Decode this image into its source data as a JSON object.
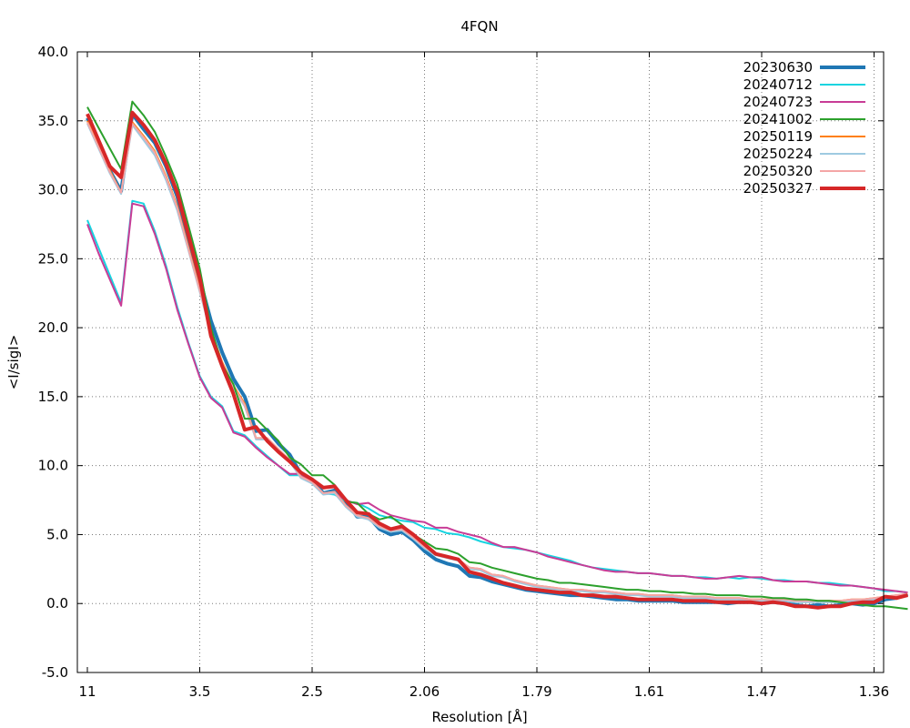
{
  "chart_data": {
    "type": "line",
    "title": "4FQN",
    "xlabel": "Resolution [Å]",
    "ylabel": "<I/sigI>",
    "ylim": [
      -5,
      40
    ],
    "y_ticks": [
      "-5.0",
      "0.0",
      "5.0",
      "10.0",
      "15.0",
      "20.0",
      "25.0",
      "30.0",
      "35.0",
      "40.0"
    ],
    "x_tick_labels": [
      "11",
      "3.5",
      "2.5",
      "2.06",
      "1.79",
      "1.61",
      "1.47",
      "1.36"
    ],
    "x_axis_note": "bins evenly spaced; labeled resolution shells at bins 0,10,20,30,40,50,60,70",
    "grid": true,
    "legend_position": "top-right",
    "series": [
      {
        "name": "20230630",
        "color": "#1f77b4",
        "width": 4,
        "values": [
          35.2,
          33.3,
          31.4,
          29.9,
          35.5,
          34.4,
          33.4,
          31.7,
          29.5,
          26.5,
          23.5,
          20.5,
          18.2,
          16.3,
          15.0,
          12.5,
          12.6,
          11.6,
          10.8,
          9.4,
          9.0,
          8.0,
          8.2,
          7.4,
          6.3,
          6.3,
          5.4,
          5.0,
          5.2,
          4.6,
          3.8,
          3.2,
          2.9,
          2.7,
          2.0,
          1.9,
          1.6,
          1.4,
          1.2,
          1.0,
          0.9,
          0.8,
          0.7,
          0.6,
          0.6,
          0.5,
          0.4,
          0.3,
          0.3,
          0.2,
          0.2,
          0.2,
          0.2,
          0.1,
          0.1,
          0.1,
          0.1,
          0.0,
          0.1,
          0.1,
          0.0,
          0.1,
          0.0,
          -0.1,
          -0.2,
          -0.1,
          -0.2,
          -0.1,
          0.0,
          -0.1,
          0.0,
          0.3,
          0.4,
          0.7
        ]
      },
      {
        "name": "20240712",
        "color": "#17d4e0",
        "width": 2,
        "values": [
          27.8,
          25.8,
          23.8,
          21.8,
          29.2,
          29.0,
          27.0,
          24.5,
          21.5,
          18.9,
          16.5,
          15.0,
          14.3,
          12.5,
          12.2,
          11.4,
          10.7,
          10.0,
          9.3,
          9.3,
          8.7,
          8.0,
          7.9,
          7.4,
          7.3,
          6.9,
          6.4,
          6.2,
          6.0,
          5.9,
          5.5,
          5.4,
          5.1,
          5.0,
          4.8,
          4.5,
          4.3,
          4.1,
          4.0,
          3.9,
          3.7,
          3.5,
          3.3,
          3.1,
          2.8,
          2.6,
          2.5,
          2.4,
          2.3,
          2.2,
          2.2,
          2.1,
          2.0,
          2.0,
          1.9,
          1.9,
          1.8,
          1.9,
          1.8,
          1.9,
          1.8,
          1.7,
          1.7,
          1.6,
          1.6,
          1.5,
          1.5,
          1.4,
          1.3,
          1.2,
          1.1,
          0.9,
          0.9,
          0.8
        ]
      },
      {
        "name": "20240723",
        "color": "#c83c96",
        "width": 2,
        "values": [
          27.5,
          25.4,
          23.5,
          21.6,
          29.0,
          28.8,
          26.8,
          24.3,
          21.3,
          18.8,
          16.4,
          14.9,
          14.2,
          12.4,
          12.1,
          11.3,
          10.6,
          10.0,
          9.4,
          9.4,
          8.8,
          8.0,
          8.0,
          7.5,
          7.2,
          7.3,
          6.8,
          6.4,
          6.2,
          6.0,
          5.9,
          5.5,
          5.5,
          5.2,
          5.0,
          4.8,
          4.4,
          4.1,
          4.1,
          3.9,
          3.7,
          3.4,
          3.2,
          3.0,
          2.8,
          2.6,
          2.4,
          2.3,
          2.3,
          2.2,
          2.2,
          2.1,
          2.0,
          2.0,
          1.9,
          1.8,
          1.8,
          1.9,
          2.0,
          1.9,
          1.9,
          1.7,
          1.6,
          1.6,
          1.6,
          1.5,
          1.4,
          1.3,
          1.3,
          1.2,
          1.1,
          1.0,
          0.9,
          0.8
        ]
      },
      {
        "name": "20241002",
        "color": "#2ca02c",
        "width": 2,
        "values": [
          36.0,
          34.5,
          33.0,
          31.5,
          36.4,
          35.4,
          34.2,
          32.4,
          30.4,
          27.4,
          24.3,
          20.0,
          17.3,
          15.9,
          13.4,
          13.4,
          12.6,
          11.8,
          10.6,
          10.1,
          9.3,
          9.3,
          8.6,
          7.4,
          7.3,
          6.5,
          6.1,
          6.3,
          5.7,
          5.0,
          4.5,
          4.0,
          3.9,
          3.6,
          3.0,
          2.9,
          2.6,
          2.4,
          2.2,
          2.0,
          1.8,
          1.7,
          1.5,
          1.5,
          1.4,
          1.3,
          1.2,
          1.1,
          1.0,
          1.0,
          0.9,
          0.9,
          0.8,
          0.8,
          0.7,
          0.7,
          0.6,
          0.6,
          0.6,
          0.5,
          0.5,
          0.4,
          0.4,
          0.3,
          0.3,
          0.2,
          0.2,
          0.1,
          0.0,
          -0.1,
          -0.2,
          -0.2,
          -0.3,
          -0.4
        ]
      },
      {
        "name": "20250119",
        "color": "#ff7f0e",
        "width": 2,
        "values": [
          35.0,
          33.2,
          31.4,
          29.8,
          34.9,
          33.9,
          32.8,
          31.0,
          28.8,
          25.8,
          22.8,
          19.8,
          17.5,
          15.8,
          14.5,
          12.0,
          12.0,
          11.2,
          10.4,
          9.2,
          8.8,
          8.0,
          8.1,
          7.1,
          6.4,
          6.2,
          5.6,
          5.3,
          5.4,
          4.8,
          4.1,
          3.6,
          3.4,
          3.2,
          2.6,
          2.5,
          2.1,
          2.0,
          1.7,
          1.5,
          1.3,
          1.2,
          1.1,
          1.0,
          1.0,
          0.9,
          0.9,
          0.8,
          0.7,
          0.7,
          0.6,
          0.6,
          0.6,
          0.5,
          0.5,
          0.5,
          0.4,
          0.4,
          0.4,
          0.3,
          0.3,
          0.3,
          0.3,
          0.2,
          0.2,
          0.2,
          0.2,
          0.2,
          0.3,
          0.3,
          0.4,
          0.5,
          0.6,
          0.7
        ]
      },
      {
        "name": "20250224",
        "color": "#9ecae1",
        "width": 2,
        "values": [
          34.8,
          33.0,
          31.2,
          29.7,
          34.7,
          33.6,
          32.5,
          30.7,
          28.5,
          25.6,
          22.6,
          19.6,
          17.3,
          15.6,
          14.3,
          11.9,
          11.9,
          11.1,
          10.3,
          9.1,
          8.7,
          7.9,
          8.0,
          7.0,
          6.3,
          6.1,
          5.5,
          5.2,
          5.3,
          4.7,
          4.0,
          3.5,
          3.3,
          3.1,
          2.5,
          2.4,
          2.0,
          1.9,
          1.6,
          1.4,
          1.2,
          1.1,
          1.0,
          0.9,
          0.9,
          0.8,
          0.8,
          0.7,
          0.6,
          0.6,
          0.5,
          0.5,
          0.5,
          0.4,
          0.4,
          0.4,
          0.3,
          0.3,
          0.3,
          0.2,
          0.2,
          0.2,
          0.2,
          0.1,
          0.1,
          0.1,
          0.1,
          0.1,
          0.2,
          0.2,
          0.3,
          0.4,
          0.5,
          0.6
        ]
      },
      {
        "name": "20250320",
        "color": "#f4a6a6",
        "width": 2,
        "values": [
          34.9,
          33.1,
          31.3,
          29.8,
          34.8,
          33.8,
          32.7,
          30.9,
          28.7,
          25.7,
          22.7,
          19.7,
          17.4,
          15.7,
          14.4,
          12.0,
          12.0,
          11.2,
          10.4,
          9.2,
          8.8,
          8.0,
          8.1,
          7.1,
          6.4,
          6.2,
          5.6,
          5.3,
          5.4,
          4.8,
          4.1,
          3.6,
          3.4,
          3.2,
          2.6,
          2.5,
          2.1,
          2.0,
          1.7,
          1.5,
          1.3,
          1.2,
          1.1,
          1.0,
          1.0,
          0.9,
          0.9,
          0.8,
          0.7,
          0.7,
          0.6,
          0.6,
          0.6,
          0.5,
          0.5,
          0.5,
          0.4,
          0.4,
          0.4,
          0.3,
          0.3,
          0.3,
          0.3,
          0.2,
          0.2,
          0.2,
          0.2,
          0.2,
          0.3,
          0.3,
          0.4,
          0.5,
          0.6,
          0.7
        ]
      },
      {
        "name": "20250327",
        "color": "#d62728",
        "width": 4,
        "values": [
          35.5,
          33.6,
          31.7,
          30.9,
          35.6,
          34.7,
          33.6,
          31.9,
          29.8,
          26.7,
          23.6,
          19.4,
          17.2,
          15.2,
          12.6,
          12.8,
          11.8,
          11.0,
          10.3,
          9.5,
          9.0,
          8.4,
          8.5,
          7.5,
          6.6,
          6.5,
          5.8,
          5.4,
          5.6,
          5.0,
          4.3,
          3.6,
          3.4,
          3.2,
          2.3,
          2.1,
          1.8,
          1.5,
          1.3,
          1.1,
          1.0,
          0.9,
          0.8,
          0.8,
          0.6,
          0.6,
          0.5,
          0.5,
          0.4,
          0.3,
          0.3,
          0.3,
          0.3,
          0.2,
          0.2,
          0.2,
          0.1,
          0.1,
          0.1,
          0.1,
          0.0,
          0.1,
          0.0,
          -0.2,
          -0.2,
          -0.3,
          -0.2,
          -0.2,
          0.0,
          0.1,
          0.1,
          0.5,
          0.4,
          0.6
        ]
      }
    ]
  }
}
